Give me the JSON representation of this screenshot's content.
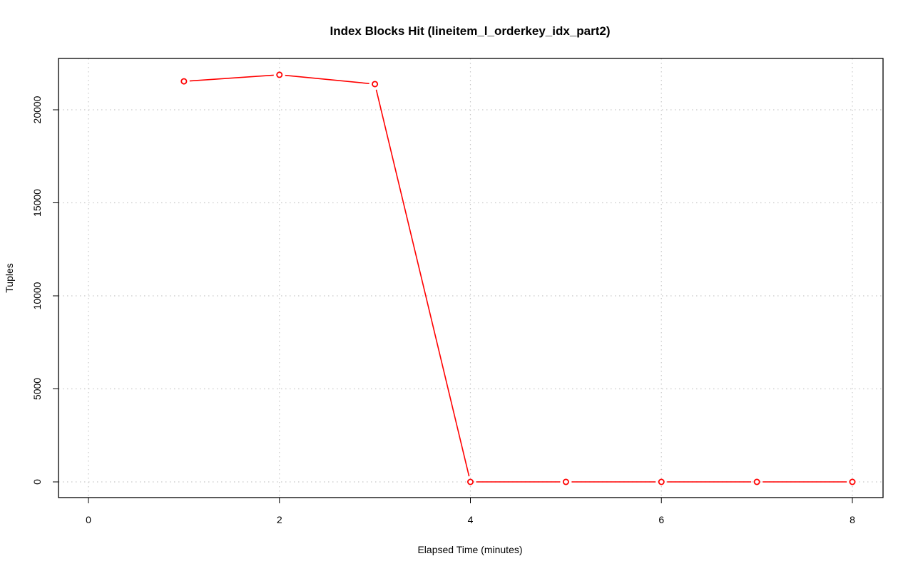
{
  "chart_data": {
    "type": "line",
    "title": "Index Blocks Hit (lineitem_l_orderkey_idx_part2)",
    "xlabel": "Elapsed Time (minutes)",
    "ylabel": "Tuples",
    "xlim": [
      0,
      8
    ],
    "ylim": [
      0,
      20000
    ],
    "x_ticks": [
      0,
      2,
      4,
      6,
      8
    ],
    "y_ticks": [
      0,
      5000,
      10000,
      15000,
      20000
    ],
    "grid": true,
    "series": [
      {
        "color": "#ff0000",
        "x": [
          1,
          2,
          3,
          4,
          5,
          6,
          7,
          8
        ],
        "values": [
          21530,
          21880,
          21380,
          0,
          0,
          0,
          0,
          0
        ]
      }
    ]
  }
}
